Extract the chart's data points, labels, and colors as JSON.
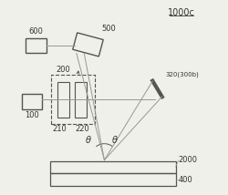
{
  "bg_color": "#f0f0eb",
  "line_color": "#999990",
  "dark_color": "#555550",
  "label_color": "#333330",
  "title": "1000c",
  "theta_label": "θ",
  "font_size": 7
}
